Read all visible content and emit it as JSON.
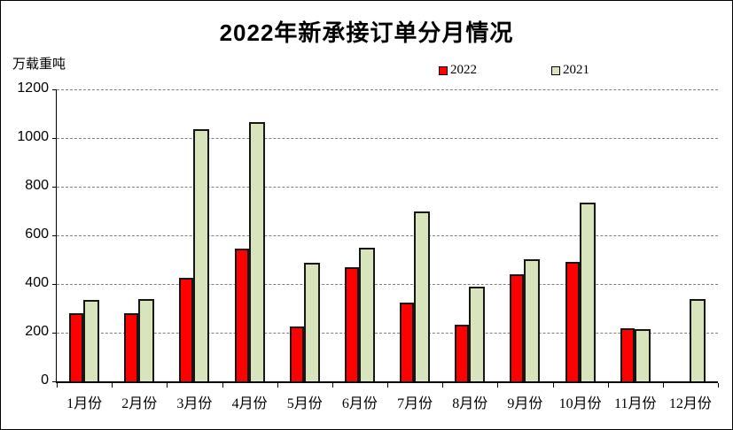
{
  "chart_data": {
    "type": "bar",
    "title": "2022年新承接订单分月情况",
    "unit_label": "万载重吨",
    "categories": [
      "1月份",
      "2月份",
      "3月份",
      "4月份",
      "5月份",
      "6月份",
      "7月份",
      "8月份",
      "9月份",
      "10月份",
      "11月份",
      "12月份"
    ],
    "series": [
      {
        "name": "2022",
        "color": "#ff0000",
        "values": [
          280,
          280,
          425,
          545,
          225,
          470,
          325,
          233,
          440,
          490,
          220,
          null
        ]
      },
      {
        "name": "2021",
        "color": "#d8e4bc",
        "values": [
          335,
          340,
          1035,
          1065,
          488,
          548,
          700,
          390,
          503,
          733,
          216,
          340
        ]
      }
    ],
    "ylim": [
      0,
      1200
    ],
    "yticks": [
      1200,
      1000,
      800,
      600,
      400,
      200,
      0
    ],
    "xlabel": "",
    "ylabel": "",
    "grid": "horizontal-dashed",
    "legend_position": "top-center",
    "colors": {
      "bar_border": "#161616",
      "gridline": "#7f7f7f",
      "axis": "#000000",
      "background": "#ffffff"
    }
  }
}
